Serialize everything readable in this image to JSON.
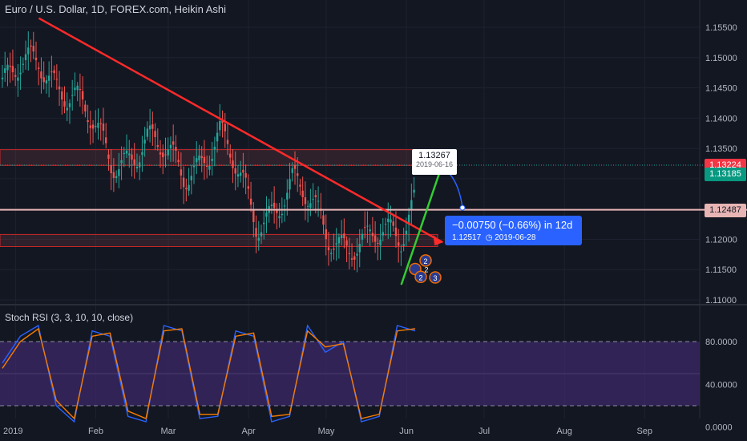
{
  "header": {
    "title": "Euro / U.S. Dollar, 1D, FOREX.com, Heikin Ashi"
  },
  "oscillator": {
    "title": "Stoch RSI (3, 3, 10, 10, close)",
    "ticks": [
      "80.0000",
      "40.0000",
      "0.0000"
    ]
  },
  "price_axis": {
    "ticks": [
      "1.15500",
      "1.15000",
      "1.14500",
      "1.14000",
      "1.13500",
      "1.12000",
      "1.11500",
      "1.11000"
    ]
  },
  "price_tags": [
    {
      "label": "1.13224",
      "color": "#f23645"
    },
    {
      "label": "1.13185",
      "color": "#089981"
    },
    {
      "label": "1.12487",
      "color": "#e8b5b5"
    }
  ],
  "tooltip": {
    "price": "1.13267",
    "date": "2019-06-16"
  },
  "measure": {
    "line1": "−0.00750 (−0.66%) in 12d",
    "line2": "1.12517",
    "date": "2019-06-28"
  },
  "event_badges": [
    "2",
    "2",
    "2",
    "3"
  ],
  "time_axis": [
    "2019",
    "Feb",
    "Mar",
    "Apr",
    "May",
    "Jun",
    "Jul",
    "Aug",
    "Sep"
  ],
  "colors": {
    "up": "#26a69a",
    "down": "#ef5350",
    "trend": "#ff2a2a",
    "uptrend": "#33cc33",
    "k_line": "#2962ff",
    "d_line": "#f57c00",
    "band": "#3f2a6b"
  },
  "chart_data": [
    {
      "type": "candlestick",
      "title": "Euro / U.S. Dollar, 1D, FOREX.com, Heikin Ashi",
      "ylim": [
        1.108,
        1.158
      ],
      "x": [
        "2018-12-27",
        "2019-01-10",
        "2019-01-24",
        "2019-02-07",
        "2019-02-21",
        "2019-03-07",
        "2019-03-21",
        "2019-04-04",
        "2019-04-18",
        "2019-05-02",
        "2019-05-16",
        "2019-05-30",
        "2019-06-07"
      ],
      "close": [
        1.145,
        1.15,
        1.143,
        1.133,
        1.136,
        1.131,
        1.137,
        1.123,
        1.129,
        1.121,
        1.119,
        1.121,
        1.132
      ],
      "horizontal_levels": [
        1.12487,
        1.13224
      ],
      "zones": [
        [
          1.1322,
          1.1348
        ],
        [
          1.1188,
          1.1208
        ]
      ],
      "trendlines": [
        {
          "name": "",
          "from": [
            "2019-01-10",
            1.1565
          ],
          "to": [
            "2019-06-15",
            1.1195
          ]
        },
        {
          "name": "",
          "from": [
            "2019-05-30",
            1.1125
          ],
          "to": [
            "2019-06-16",
            1.1338
          ]
        }
      ]
    },
    {
      "type": "line",
      "title": "Stoch RSI (3, 3, 10, 10, close)",
      "ylim": [
        -5,
        100
      ],
      "bands": [
        20,
        80
      ],
      "series": [
        {
          "name": "",
          "values": [
            60,
            85,
            95,
            20,
            5,
            90,
            85,
            10,
            5,
            95,
            90,
            8,
            10,
            90,
            85,
            5,
            10,
            95,
            70,
            80,
            5,
            10,
            95,
            90
          ]
        },
        {
          "name": "",
          "values": [
            55,
            80,
            92,
            25,
            8,
            85,
            88,
            15,
            8,
            90,
            92,
            12,
            12,
            85,
            88,
            10,
            12,
            90,
            75,
            78,
            8,
            12,
            90,
            92
          ]
        }
      ]
    }
  ]
}
